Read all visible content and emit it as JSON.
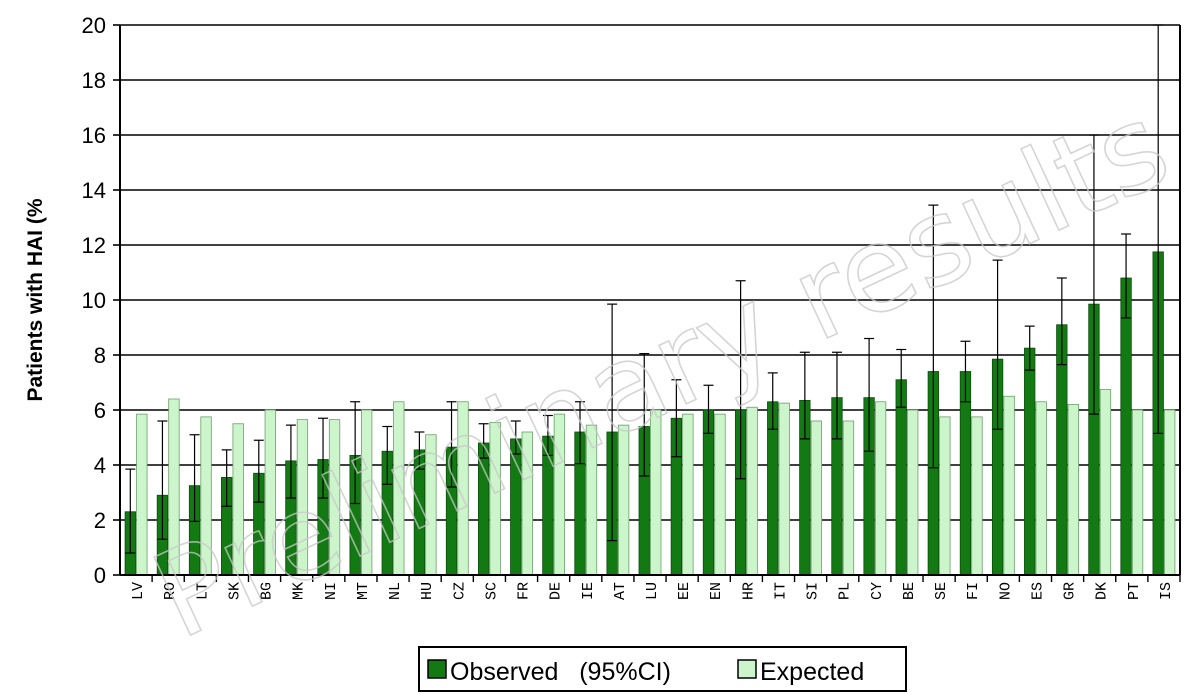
{
  "chart_data": {
    "type": "bar",
    "ylabel": "Patients with HAI (%",
    "ylim": [
      0,
      20
    ],
    "yticks": [
      0,
      2,
      4,
      6,
      8,
      10,
      12,
      14,
      16,
      18,
      20
    ],
    "grid": true,
    "legend_position": "bottom",
    "watermark": "Preliminary results",
    "categories": [
      "LV",
      "RO",
      "LT",
      "SK",
      "BG",
      "MK",
      "NI",
      "MT",
      "NL",
      "HU",
      "CZ",
      "SC",
      "FR",
      "DE",
      "IE",
      "AT",
      "LU",
      "EE",
      "EN",
      "HR",
      "IT",
      "SI",
      "PL",
      "CY",
      "BE",
      "SE",
      "FI",
      "NO",
      "ES",
      "GR",
      "DK",
      "PT",
      "IS"
    ],
    "series": [
      {
        "name": "Observed   (95%CI)",
        "color": "#137a13",
        "values": [
          2.3,
          2.9,
          3.25,
          3.55,
          3.7,
          4.15,
          4.2,
          4.35,
          4.5,
          4.55,
          4.65,
          4.8,
          4.95,
          5.05,
          5.2,
          5.2,
          5.4,
          5.7,
          6.0,
          6.0,
          6.3,
          6.35,
          6.45,
          6.45,
          7.1,
          7.4,
          7.4,
          7.85,
          8.25,
          9.1,
          9.85,
          10.8,
          11.75
        ],
        "ci_low": [
          0.8,
          1.3,
          1.95,
          2.5,
          2.65,
          2.8,
          2.8,
          2.6,
          3.3,
          3.85,
          3.2,
          4.25,
          4.4,
          4.35,
          4.05,
          1.25,
          3.6,
          4.3,
          5.15,
          3.5,
          5.3,
          4.95,
          4.95,
          4.5,
          6.1,
          3.9,
          6.3,
          5.3,
          7.45,
          7.65,
          5.85,
          9.35,
          5.15
        ],
        "ci_high": [
          3.85,
          5.6,
          5.1,
          4.55,
          4.9,
          5.45,
          5.7,
          6.3,
          5.4,
          5.2,
          6.3,
          5.5,
          5.6,
          5.8,
          6.3,
          9.85,
          8.05,
          7.1,
          6.9,
          10.7,
          7.35,
          8.1,
          8.1,
          8.6,
          8.2,
          13.45,
          8.5,
          11.45,
          9.05,
          10.8,
          16.0,
          12.4,
          20.0
        ]
      },
      {
        "name": "Expected",
        "color": "#ccf5cc",
        "values": [
          5.85,
          6.4,
          5.75,
          5.5,
          6.0,
          5.65,
          5.65,
          6.0,
          6.3,
          5.1,
          6.3,
          5.55,
          5.2,
          5.85,
          5.45,
          5.45,
          6.0,
          5.85,
          5.85,
          6.1,
          6.25,
          5.6,
          5.6,
          6.3,
          6.0,
          5.75,
          5.75,
          6.5,
          6.3,
          6.2,
          6.75,
          6.0,
          6.0
        ]
      }
    ]
  }
}
